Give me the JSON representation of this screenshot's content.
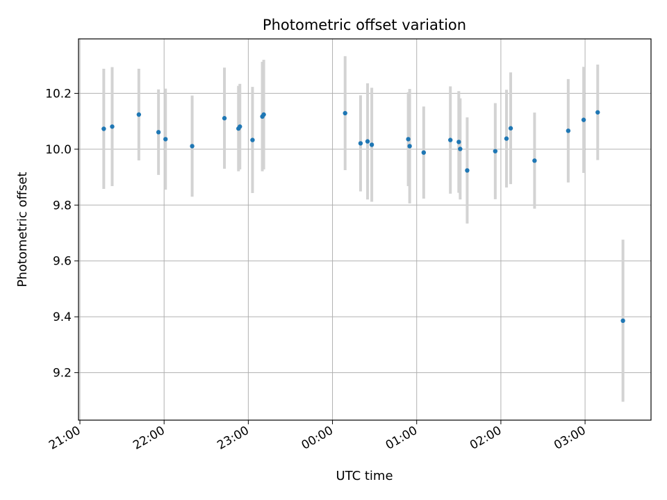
{
  "chart_data": {
    "type": "scatter",
    "title": "Photometric offset variation",
    "xlabel": "UTC time",
    "ylabel": "Photometric offset",
    "x_axis": "time",
    "x_ticks": [
      "21:00",
      "22:00",
      "23:00",
      "00:00",
      "01:00",
      "02:00",
      "03:00"
    ],
    "xlim": [
      "20:59",
      "03:47"
    ],
    "y_ticks": [
      9.2,
      9.4,
      9.6,
      9.8,
      10.0,
      10.2
    ],
    "ylim": [
      9.03,
      10.395
    ],
    "grid": true,
    "point_color": "#1f77b4",
    "errorbar_color": "#d3d3d3",
    "points": [
      {
        "x": "21:17",
        "y": 10.073,
        "err": 0.215
      },
      {
        "x": "21:23",
        "y": 10.081,
        "err": 0.213
      },
      {
        "x": "21:42",
        "y": 10.124,
        "err": 0.164
      },
      {
        "x": "21:56",
        "y": 10.061,
        "err": 0.153
      },
      {
        "x": "22:01",
        "y": 10.036,
        "err": 0.181
      },
      {
        "x": "22:20",
        "y": 10.011,
        "err": 0.181
      },
      {
        "x": "22:43",
        "y": 10.111,
        "err": 0.181
      },
      {
        "x": "22:53",
        "y": 10.074,
        "err": 0.153
      },
      {
        "x": "22:54",
        "y": 10.081,
        "err": 0.153
      },
      {
        "x": "23:03",
        "y": 10.033,
        "err": 0.19
      },
      {
        "x": "23:10",
        "y": 10.117,
        "err": 0.196
      },
      {
        "x": "23:11",
        "y": 10.124,
        "err": 0.196
      },
      {
        "x": "00:09",
        "y": 10.129,
        "err": 0.204
      },
      {
        "x": "00:20",
        "y": 10.021,
        "err": 0.172
      },
      {
        "x": "00:25",
        "y": 10.028,
        "err": 0.208
      },
      {
        "x": "00:28",
        "y": 10.016,
        "err": 0.204
      },
      {
        "x": "00:54",
        "y": 10.036,
        "err": 0.168
      },
      {
        "x": "00:55",
        "y": 10.011,
        "err": 0.205
      },
      {
        "x": "01:05",
        "y": 9.988,
        "err": 0.165
      },
      {
        "x": "01:24",
        "y": 10.033,
        "err": 0.192
      },
      {
        "x": "01:30",
        "y": 10.026,
        "err": 0.182
      },
      {
        "x": "01:31",
        "y": 10.001,
        "err": 0.181
      },
      {
        "x": "01:36",
        "y": 9.924,
        "err": 0.19
      },
      {
        "x": "01:56",
        "y": 9.993,
        "err": 0.172
      },
      {
        "x": "02:04",
        "y": 10.038,
        "err": 0.175
      },
      {
        "x": "02:07",
        "y": 10.075,
        "err": 0.2
      },
      {
        "x": "02:24",
        "y": 9.959,
        "err": 0.172
      },
      {
        "x": "02:48",
        "y": 10.066,
        "err": 0.185
      },
      {
        "x": "02:59",
        "y": 10.105,
        "err": 0.19
      },
      {
        "x": "03:09",
        "y": 10.132,
        "err": 0.171
      },
      {
        "x": "03:27",
        "y": 9.386,
        "err": 0.29
      }
    ]
  }
}
